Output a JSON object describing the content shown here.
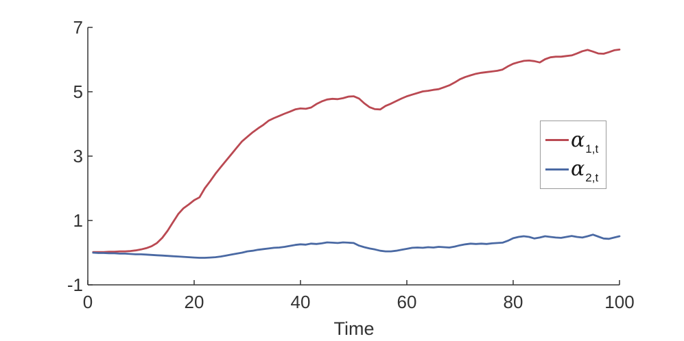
{
  "figure": {
    "background": "#ffffff"
  },
  "axes": {
    "color": "#333333",
    "tick_color": "#333333",
    "tick_label_color": "#333333"
  },
  "chart_data": {
    "type": "line",
    "title": "",
    "xlabel": "Time",
    "ylabel": "",
    "xlim": [
      0,
      100
    ],
    "ylim": [
      -1,
      7
    ],
    "x_ticks": [
      0,
      20,
      40,
      60,
      80,
      100
    ],
    "y_ticks": [
      -1,
      1,
      3,
      5,
      7
    ],
    "grid": false,
    "legend_position": "right-center",
    "x": [
      1,
      2,
      3,
      4,
      5,
      6,
      7,
      8,
      9,
      10,
      11,
      12,
      13,
      14,
      15,
      16,
      17,
      18,
      19,
      20,
      21,
      22,
      23,
      24,
      25,
      26,
      27,
      28,
      29,
      30,
      31,
      32,
      33,
      34,
      35,
      36,
      37,
      38,
      39,
      40,
      41,
      42,
      43,
      44,
      45,
      46,
      47,
      48,
      49,
      50,
      51,
      52,
      53,
      54,
      55,
      56,
      57,
      58,
      59,
      60,
      61,
      62,
      63,
      64,
      65,
      66,
      67,
      68,
      69,
      70,
      71,
      72,
      73,
      74,
      75,
      76,
      77,
      78,
      79,
      80,
      81,
      82,
      83,
      84,
      85,
      86,
      87,
      88,
      89,
      90,
      91,
      92,
      93,
      94,
      95,
      96,
      97,
      98,
      99,
      100
    ],
    "series": [
      {
        "name": "alpha_1_t",
        "label_symbol": "α",
        "label_subscript": "1,t",
        "color": "#BA4952",
        "values": [
          0.02,
          0.02,
          0.02,
          0.03,
          0.03,
          0.04,
          0.04,
          0.05,
          0.07,
          0.1,
          0.14,
          0.2,
          0.3,
          0.46,
          0.68,
          0.94,
          1.2,
          1.38,
          1.5,
          1.63,
          1.72,
          2.0,
          2.22,
          2.45,
          2.66,
          2.86,
          3.06,
          3.26,
          3.46,
          3.6,
          3.74,
          3.86,
          3.97,
          4.1,
          4.18,
          4.25,
          4.32,
          4.38,
          4.45,
          4.48,
          4.47,
          4.51,
          4.62,
          4.7,
          4.76,
          4.78,
          4.77,
          4.8,
          4.85,
          4.86,
          4.79,
          4.64,
          4.52,
          4.46,
          4.45,
          4.56,
          4.63,
          4.71,
          4.79,
          4.86,
          4.91,
          4.96,
          5.01,
          5.03,
          5.06,
          5.08,
          5.14,
          5.2,
          5.29,
          5.39,
          5.46,
          5.51,
          5.56,
          5.59,
          5.61,
          5.63,
          5.65,
          5.69,
          5.79,
          5.87,
          5.92,
          5.96,
          5.97,
          5.95,
          5.91,
          6.01,
          6.07,
          6.09,
          6.09,
          6.11,
          6.13,
          6.19,
          6.26,
          6.3,
          6.25,
          6.19,
          6.18,
          6.23,
          6.29,
          6.31
        ]
      },
      {
        "name": "alpha_2_t",
        "label_symbol": "α",
        "label_subscript": "2,t",
        "color": "#4A69A3",
        "values": [
          0.0,
          -0.01,
          -0.01,
          -0.02,
          -0.02,
          -0.03,
          -0.03,
          -0.04,
          -0.05,
          -0.05,
          -0.06,
          -0.07,
          -0.08,
          -0.09,
          -0.1,
          -0.11,
          -0.12,
          -0.13,
          -0.14,
          -0.15,
          -0.16,
          -0.16,
          -0.15,
          -0.14,
          -0.12,
          -0.09,
          -0.06,
          -0.03,
          0.0,
          0.04,
          0.06,
          0.09,
          0.11,
          0.13,
          0.15,
          0.16,
          0.18,
          0.21,
          0.24,
          0.26,
          0.25,
          0.28,
          0.27,
          0.29,
          0.32,
          0.31,
          0.3,
          0.32,
          0.31,
          0.3,
          0.22,
          0.17,
          0.13,
          0.1,
          0.06,
          0.04,
          0.04,
          0.06,
          0.09,
          0.12,
          0.15,
          0.16,
          0.15,
          0.17,
          0.16,
          0.18,
          0.17,
          0.16,
          0.19,
          0.23,
          0.26,
          0.28,
          0.27,
          0.28,
          0.27,
          0.29,
          0.3,
          0.31,
          0.37,
          0.45,
          0.49,
          0.51,
          0.49,
          0.44,
          0.47,
          0.51,
          0.49,
          0.47,
          0.46,
          0.49,
          0.52,
          0.49,
          0.47,
          0.51,
          0.56,
          0.5,
          0.44,
          0.43,
          0.47,
          0.51
        ]
      }
    ]
  }
}
